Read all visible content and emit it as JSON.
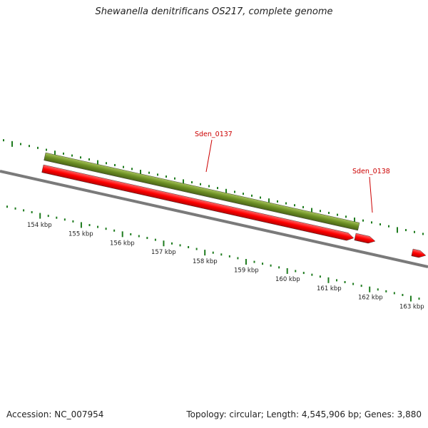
{
  "title": "Shewanella denitrificans OS217, complete genome",
  "footer": {
    "accession": "Accession: NC_007954",
    "summary": "Topology: circular; Length: 4,545,906 bp; Genes: 3,880"
  },
  "colors": {
    "backbone": "#808080",
    "forward_gene": "#6b8e23",
    "reverse_gene": "#ff0000",
    "tick": "#1e7b1e",
    "label": "#cc0000"
  },
  "map": {
    "unit": "kbp",
    "tick_labels": [
      "154 kbp",
      "155 kbp",
      "156 kbp",
      "157 kbp",
      "158 kbp",
      "159 kbp",
      "160 kbp",
      "161 kbp",
      "162 kbp",
      "163 kbp"
    ],
    "features": [
      {
        "name": "Sden_0137",
        "strand": "forward"
      },
      {
        "name": "Sden_0137",
        "strand": "reverse"
      },
      {
        "name": "Sden_0138",
        "strand": "reverse"
      },
      {
        "name": "",
        "strand": "reverse"
      }
    ],
    "labels": [
      "Sden_0137",
      "Sden_0138"
    ]
  }
}
